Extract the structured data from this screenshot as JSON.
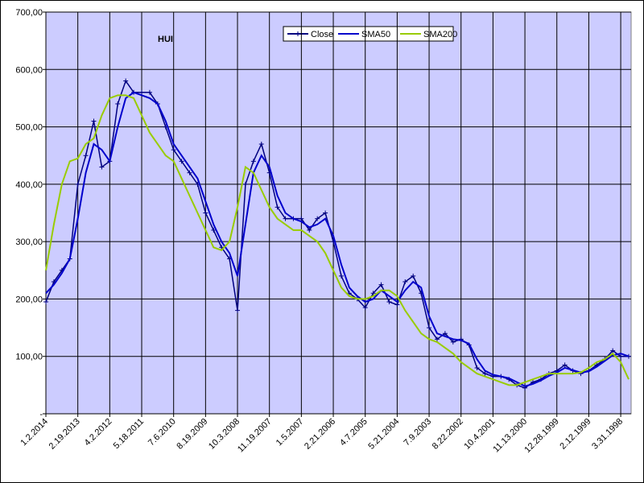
{
  "chart_data": {
    "type": "line",
    "annotation": "HUI",
    "categories": [
      "1.2.2014",
      null,
      null,
      null,
      "2.19.2013",
      null,
      null,
      null,
      "4.2.2012",
      null,
      null,
      null,
      "5.18.2011",
      null,
      null,
      null,
      "7.6.2010",
      null,
      null,
      null,
      "8.19.2009",
      null,
      null,
      null,
      "10.3.2008",
      null,
      null,
      null,
      "11.19.2007",
      null,
      null,
      null,
      "1.5.2007",
      null,
      null,
      null,
      "2.21.2006",
      null,
      null,
      null,
      "4.7.2005",
      null,
      null,
      null,
      "5.21.2004",
      null,
      null,
      null,
      "7.9.2003",
      null,
      null,
      null,
      "8.22.2002",
      null,
      null,
      null,
      "10.4.2001",
      null,
      null,
      null,
      "11.13.2000",
      null,
      null,
      null,
      "12.28.1999",
      null,
      null,
      null,
      "2.12.1999",
      null,
      null,
      null,
      "3.31.1998",
      null
    ],
    "series": [
      {
        "name": "Close",
        "color": "#000080",
        "values": [
          195,
          230,
          250,
          270,
          400,
          450,
          510,
          430,
          440,
          540,
          580,
          560,
          560,
          560,
          540,
          500,
          460,
          440,
          420,
          400,
          350,
          320,
          290,
          270,
          180,
          400,
          440,
          470,
          420,
          360,
          340,
          340,
          340,
          320,
          340,
          350,
          300,
          240,
          210,
          200,
          185,
          210,
          225,
          195,
          190,
          230,
          240,
          210,
          150,
          130,
          140,
          125,
          130,
          120,
          80,
          70,
          65,
          65,
          60,
          50,
          45,
          55,
          60,
          70,
          75,
          85,
          75,
          70,
          75,
          85,
          95,
          110,
          100,
          100
        ]
      },
      {
        "name": "SMA50",
        "color": "#0000cc",
        "values": [
          210,
          225,
          245,
          270,
          340,
          420,
          470,
          460,
          440,
          500,
          550,
          560,
          555,
          550,
          540,
          510,
          470,
          450,
          430,
          410,
          370,
          330,
          300,
          280,
          240,
          330,
          420,
          450,
          430,
          380,
          350,
          340,
          335,
          325,
          330,
          340,
          310,
          260,
          220,
          205,
          195,
          200,
          215,
          205,
          195,
          215,
          230,
          220,
          170,
          140,
          135,
          130,
          128,
          122,
          95,
          75,
          68,
          65,
          62,
          55,
          48,
          52,
          58,
          66,
          72,
          80,
          76,
          72,
          74,
          82,
          92,
          102,
          105,
          100
        ]
      },
      {
        "name": "SMA200",
        "color": "#99cc00",
        "values": [
          250,
          330,
          400,
          440,
          445,
          470,
          480,
          520,
          550,
          555,
          555,
          550,
          520,
          490,
          470,
          450,
          440,
          410,
          380,
          350,
          320,
          290,
          285,
          300,
          360,
          430,
          420,
          390,
          360,
          340,
          330,
          320,
          320,
          310,
          300,
          280,
          250,
          220,
          205,
          200,
          200,
          205,
          215,
          215,
          205,
          180,
          160,
          140,
          130,
          125,
          115,
          105,
          90,
          80,
          70,
          65,
          60,
          55,
          50,
          50,
          55,
          60,
          65,
          70,
          70,
          70,
          70,
          72,
          80,
          90,
          95,
          105,
          90,
          60
        ]
      }
    ],
    "ylim": [
      0,
      700
    ],
    "yticks": [
      {
        "value": 0,
        "label": "-"
      },
      {
        "value": 100,
        "label": "100,00"
      },
      {
        "value": 200,
        "label": "200,00"
      },
      {
        "value": 300,
        "label": "300,00"
      },
      {
        "value": 400,
        "label": "400,00"
      },
      {
        "value": 500,
        "label": "500,00"
      },
      {
        "value": 600,
        "label": "600,00"
      },
      {
        "value": 700,
        "label": "700,00"
      }
    ],
    "grid": true,
    "legend": "top"
  }
}
